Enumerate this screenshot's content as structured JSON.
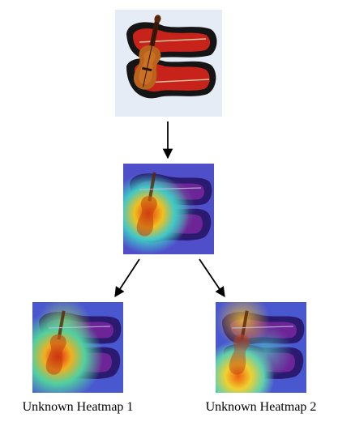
{
  "captions": {
    "left": "Unknown Heatmap 1",
    "right": "Unknown Heatmap 2"
  },
  "colors": {
    "case": "#151515",
    "case_lining": "#c8231a",
    "violin_body": "#b8621c",
    "violin_dark": "#5a2608",
    "heat_low": "#3b54d8",
    "heat_mid": "#40c8c8",
    "heat_high": "#e83a10"
  }
}
